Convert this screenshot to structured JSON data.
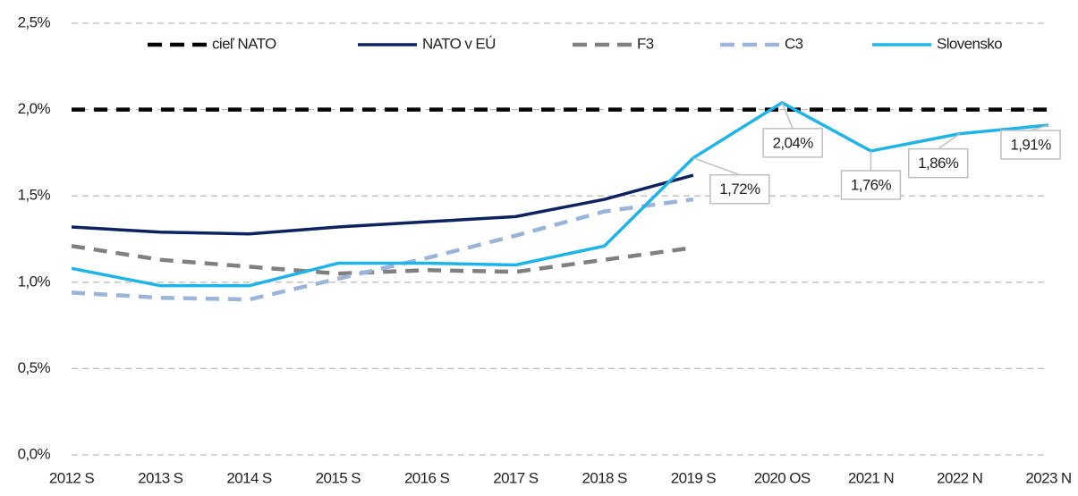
{
  "chart_data": {
    "type": "line",
    "categories": [
      "2012 S",
      "2013 S",
      "2014 S",
      "2015 S",
      "2016 S",
      "2017 S",
      "2018 S",
      "2019 S",
      "2020 OS",
      "2021 N",
      "2022 N",
      "2023 N"
    ],
    "series": [
      {
        "name": "cieľ NATO",
        "color": "#000000",
        "dashed": true,
        "values": [
          2.0,
          2.0,
          2.0,
          2.0,
          2.0,
          2.0,
          2.0,
          2.0,
          2.0,
          2.0,
          2.0,
          2.0
        ]
      },
      {
        "name": "NATO v EÚ",
        "color": "#0d2360",
        "dashed": false,
        "values": [
          1.32,
          1.29,
          1.28,
          1.32,
          1.35,
          1.38,
          1.48,
          1.62,
          null,
          null,
          null,
          null
        ]
      },
      {
        "name": "F3",
        "color": "#808080",
        "dashed": true,
        "values": [
          1.21,
          1.13,
          1.09,
          1.05,
          1.07,
          1.06,
          1.13,
          1.2,
          null,
          null,
          null,
          null
        ]
      },
      {
        "name": "C3",
        "color": "#9bb4d9",
        "dashed": true,
        "values": [
          0.94,
          0.91,
          0.9,
          1.02,
          1.14,
          1.27,
          1.41,
          1.48,
          null,
          null,
          null,
          null
        ]
      },
      {
        "name": "Slovensko",
        "color": "#1fb4e8",
        "dashed": false,
        "values": [
          1.08,
          0.98,
          0.98,
          1.11,
          1.11,
          1.1,
          1.21,
          1.72,
          2.04,
          1.76,
          1.86,
          1.91
        ],
        "value_labels": [
          null,
          null,
          null,
          null,
          null,
          null,
          null,
          "1,72%",
          "2,04%",
          "1,76%",
          "1,86%",
          "1,91%"
        ]
      }
    ],
    "ylim": [
      0,
      2.5
    ],
    "yticks": [
      {
        "value": 0,
        "label": "0,0%"
      },
      {
        "value": 0.5,
        "label": "0,5%"
      },
      {
        "value": 1.0,
        "label": "1,0%"
      },
      {
        "value": 1.5,
        "label": "1,5%"
      },
      {
        "value": 2.0,
        "label": "2,0%"
      },
      {
        "value": 2.5,
        "label": "2,5%"
      }
    ],
    "grid": true,
    "legend": "top"
  }
}
